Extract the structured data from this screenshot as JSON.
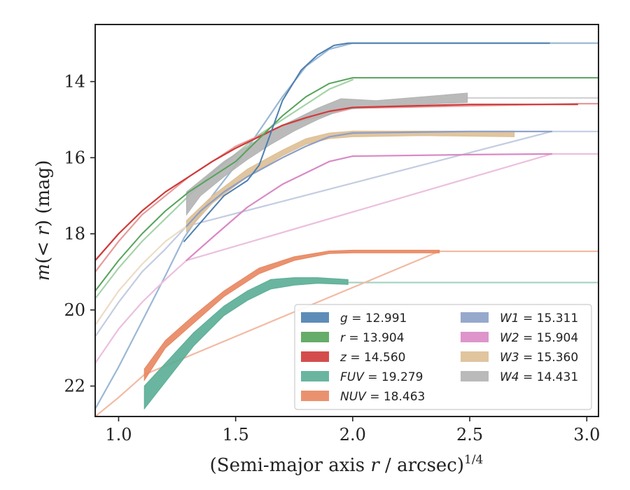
{
  "chart_data": {
    "type": "line",
    "xlabel": "(Semi-major axis r / arcsec)^1/4",
    "ylabel": "m(< r) (mag)",
    "xlim": [
      0.9,
      3.05
    ],
    "ylim": [
      22.8,
      12.5
    ],
    "y_inverted": true,
    "grid": false,
    "legend_position": "lower-right",
    "x_ticks": [
      "1.0",
      "1.5",
      "2.0",
      "2.5",
      "3.0"
    ],
    "y_ticks": [
      "14",
      "16",
      "18",
      "20",
      "22"
    ],
    "series": [
      {
        "name": "g = 12.991",
        "label_var": "g",
        "label_val": "12.991",
        "color": "#4c7fb0",
        "faint_color": "#9ab8d4",
        "width": 2.0,
        "x": [
          1.28,
          1.45,
          1.55,
          1.6,
          1.7,
          1.78,
          1.85,
          1.92,
          1.98,
          2.1,
          2.5,
          2.84
        ],
        "y": [
          18.2,
          17.0,
          16.6,
          16.2,
          14.5,
          13.7,
          13.3,
          13.05,
          12.99,
          12.99,
          12.99,
          12.99
        ],
        "faint_x": [
          0.9,
          1.0,
          1.1,
          1.2,
          1.28,
          1.4,
          1.5,
          1.6,
          1.7,
          1.8,
          1.9,
          2.0,
          2.5,
          3.05
        ],
        "faint_y": [
          22.6,
          21.5,
          20.3,
          19.1,
          18.1,
          17.0,
          16.2,
          15.3,
          14.4,
          13.6,
          13.15,
          12.99,
          12.99,
          12.99
        ]
      },
      {
        "name": "r = 13.904",
        "label_var": "r",
        "label_val": "13.904",
        "color": "#55a35a",
        "faint_color": "#a6d3a8",
        "width": 2.0,
        "x": [
          0.9,
          1.0,
          1.1,
          1.2,
          1.3,
          1.4,
          1.5,
          1.6,
          1.7,
          1.8,
          1.9,
          2.0,
          2.5,
          3.05
        ],
        "y": [
          19.5,
          18.7,
          18.0,
          17.4,
          16.9,
          16.5,
          16.1,
          15.5,
          14.9,
          14.4,
          14.05,
          13.9,
          13.9,
          13.9
        ],
        "faint_x": [
          0.9,
          1.0,
          1.1,
          1.2,
          1.3,
          1.4,
          1.5,
          1.6,
          1.7,
          1.8,
          1.9,
          2.0
        ],
        "faint_y": [
          19.7,
          18.9,
          18.2,
          17.6,
          17.0,
          16.4,
          15.9,
          15.4,
          15.0,
          14.6,
          14.2,
          13.95
        ]
      },
      {
        "name": "z = 14.560",
        "label_var": "z",
        "label_val": "14.560",
        "color": "#cf3a3a",
        "faint_color": "#e69a9a",
        "width": 2.2,
        "x": [
          0.9,
          1.0,
          1.1,
          1.2,
          1.3,
          1.4,
          1.5,
          1.6,
          1.7,
          1.8,
          1.9,
          2.0,
          2.5,
          2.96
        ],
        "y": [
          18.7,
          18.0,
          17.4,
          16.9,
          16.5,
          16.1,
          15.75,
          15.45,
          15.15,
          14.95,
          14.78,
          14.68,
          14.6,
          14.6
        ],
        "faint_x": [
          0.9,
          1.0,
          1.1,
          1.2,
          1.3,
          1.5,
          1.7,
          2.0,
          2.96,
          3.05
        ],
        "faint_y": [
          19.0,
          18.2,
          17.5,
          17.0,
          16.5,
          15.7,
          15.15,
          14.7,
          14.58,
          14.58
        ]
      },
      {
        "name": "FUV = 19.279",
        "label_var": "FUV",
        "label_val": "19.279",
        "color": "#5aad95",
        "faint_color": "#a8d3c4",
        "band": true,
        "x": [
          1.11,
          1.32,
          1.45,
          1.55,
          1.65,
          1.75,
          1.85,
          1.98
        ],
        "y_low": [
          22.6,
          20.95,
          20.15,
          19.75,
          19.45,
          19.35,
          19.3,
          19.33
        ],
        "y_high": [
          22.0,
          20.6,
          19.9,
          19.5,
          19.2,
          19.15,
          19.15,
          19.2
        ],
        "faint_x": [
          1.98,
          3.05
        ],
        "faint_y": [
          19.28,
          19.28
        ]
      },
      {
        "name": "NUV = 18.463",
        "label_var": "NUV",
        "label_val": "18.463",
        "color": "#e8865f",
        "faint_color": "#f2baa3",
        "band": true,
        "x": [
          1.11,
          1.2,
          1.32,
          1.45,
          1.6,
          1.75,
          1.9,
          2.0,
          2.37
        ],
        "y_low": [
          21.85,
          21.0,
          20.35,
          19.65,
          19.05,
          18.7,
          18.52,
          18.5,
          18.5
        ],
        "y_high": [
          21.55,
          20.8,
          20.15,
          19.5,
          18.9,
          18.6,
          18.45,
          18.43,
          18.43
        ],
        "faint_x": [
          0.9,
          1.0,
          1.11,
          2.37,
          3.05
        ],
        "faint_y": [
          22.8,
          22.3,
          21.7,
          18.46,
          18.46
        ]
      },
      {
        "name": "W1 = 15.311",
        "label_var": "W1",
        "label_val": "15.311",
        "color": "#8c9ec8",
        "faint_color": "#c3cce2",
        "width": 2.2,
        "x": [
          1.29,
          1.35,
          1.45,
          1.55,
          1.7,
          1.8,
          1.9,
          2.0,
          2.5,
          2.85
        ],
        "y": [
          17.8,
          17.4,
          16.9,
          16.5,
          16.0,
          15.7,
          15.45,
          15.35,
          15.31,
          15.31
        ],
        "faint_x": [
          0.9,
          1.0,
          1.1,
          1.2,
          1.29,
          2.85,
          3.05
        ],
        "faint_y": [
          20.7,
          19.8,
          19.0,
          18.4,
          17.8,
          15.31,
          15.31
        ]
      },
      {
        "name": "W2 = 15.904",
        "label_var": "W2",
        "label_val": "15.904",
        "color": "#d98ac4",
        "faint_color": "#ebbfde",
        "width": 2.2,
        "x": [
          1.29,
          1.4,
          1.55,
          1.7,
          1.8,
          1.9,
          2.0,
          2.5,
          2.85
        ],
        "y": [
          18.7,
          18.1,
          17.3,
          16.7,
          16.4,
          16.1,
          15.96,
          15.92,
          15.9
        ],
        "faint_x": [
          0.9,
          1.0,
          1.1,
          1.2,
          1.29,
          2.85,
          3.05
        ],
        "faint_y": [
          21.4,
          20.5,
          19.8,
          19.2,
          18.7,
          15.9,
          15.9
        ]
      },
      {
        "name": "W3 = 15.360",
        "label_var": "W3",
        "label_val": "15.360",
        "color": "#ddbf95",
        "faint_color": "#ecdcc4",
        "band": true,
        "x": [
          1.29,
          1.4,
          1.55,
          1.7,
          1.8,
          1.9,
          2.0,
          2.3,
          2.69
        ],
        "y_low": [
          17.95,
          17.2,
          16.5,
          15.95,
          15.65,
          15.5,
          15.45,
          15.42,
          15.45
        ],
        "y_high": [
          17.65,
          17.0,
          16.3,
          15.8,
          15.5,
          15.35,
          15.3,
          15.3,
          15.3
        ],
        "faint_x": [
          0.9,
          1.0,
          1.1,
          1.2,
          1.29
        ],
        "faint_y": [
          20.4,
          19.5,
          18.8,
          18.2,
          17.8
        ]
      },
      {
        "name": "W4 = 14.431",
        "label_var": "W4",
        "label_val": "14.431",
        "color": "#b3b3b3",
        "faint_color": "#d2d2d2",
        "band": true,
        "x": [
          1.29,
          1.35,
          1.45,
          1.55,
          1.65,
          1.75,
          1.85,
          1.95,
          2.1,
          2.3,
          2.49
        ],
        "y_low": [
          17.5,
          17.0,
          16.5,
          16.05,
          15.65,
          15.3,
          15.0,
          14.75,
          14.65,
          14.6,
          14.55
        ],
        "y_high": [
          16.9,
          16.6,
          16.1,
          15.7,
          15.3,
          15.0,
          14.7,
          14.45,
          14.5,
          14.4,
          14.3
        ],
        "faint_x": [
          2.49,
          3.05
        ],
        "faint_y": [
          14.43,
          14.43
        ]
      }
    ]
  }
}
